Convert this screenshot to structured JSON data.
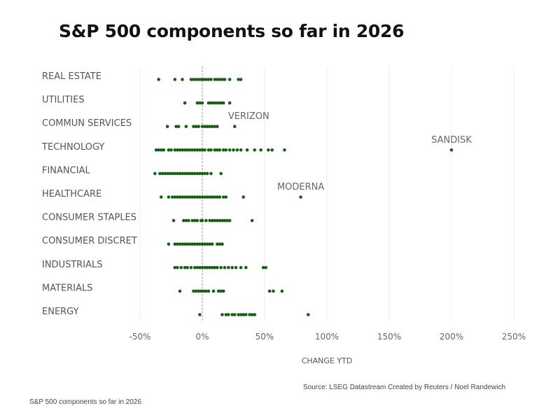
{
  "chart_data": {
    "type": "scatter",
    "title": "S&P 500 components so far in 2026",
    "xlabel": "CHANGE YTD",
    "ylabel": "",
    "xlim": [
      -50,
      250
    ],
    "x_ticks": [
      -50,
      0,
      50,
      100,
      150,
      200,
      250
    ],
    "x_tick_labels": [
      "-50%",
      "0%",
      "50%",
      "100%",
      "150%",
      "200%",
      "250%"
    ],
    "grid": "vertical",
    "reference_line": 0,
    "categories": [
      "REAL ESTATE",
      "UTILITIES",
      "COMMUN SERVICES",
      "TECHNOLOGY",
      "FINANCIAL",
      "HEALTHCARE",
      "CONSUMER STAPLES",
      "CONSUMER DISCRET",
      "INDUSTRIALS",
      "MATERIALS",
      "ENERGY"
    ],
    "series": [
      {
        "name": "REAL ESTATE",
        "values": [
          -35,
          -22,
          -16,
          -9,
          -7,
          -5,
          -3,
          -1,
          1,
          3,
          5,
          7,
          10,
          12,
          14,
          16,
          18,
          22,
          29,
          31
        ]
      },
      {
        "name": "UTILITIES",
        "values": [
          -14,
          -4,
          -2,
          0,
          5,
          7,
          9,
          11,
          13,
          15,
          17,
          22
        ]
      },
      {
        "name": "COMMUN SERVICES",
        "values": [
          -28,
          -21,
          -19,
          -13,
          -7,
          -5,
          -3,
          0,
          2,
          4,
          6,
          8,
          10,
          12,
          26
        ]
      },
      {
        "name": "TECHNOLOGY",
        "values": [
          -37,
          -35,
          -33,
          -31,
          -27,
          -25,
          -22,
          -20,
          -18,
          -16,
          -14,
          -12,
          -10,
          -8,
          -6,
          -4,
          -2,
          0,
          2,
          5,
          7,
          10,
          12,
          14,
          17,
          19,
          22,
          25,
          28,
          31,
          36,
          42,
          47,
          53,
          56,
          66,
          200
        ]
      },
      {
        "name": "FINANCIAL",
        "values": [
          -38,
          -34,
          -32,
          -30,
          -28,
          -26,
          -24,
          -22,
          -20,
          -18,
          -16,
          -14,
          -12,
          -10,
          -8,
          -6,
          -4,
          -2,
          0,
          2,
          4,
          7,
          15
        ]
      },
      {
        "name": "HEALTHCARE",
        "values": [
          -33,
          -27,
          -24,
          -22,
          -20,
          -18,
          -16,
          -14,
          -12,
          -10,
          -8,
          -6,
          -4,
          -2,
          0,
          2,
          4,
          6,
          8,
          10,
          12,
          14,
          17,
          19,
          33,
          79
        ]
      },
      {
        "name": "CONSUMER STAPLES",
        "values": [
          -23,
          -15,
          -13,
          -11,
          -8,
          -6,
          -4,
          -1,
          0,
          3,
          6,
          8,
          10,
          12,
          14,
          16,
          18,
          20,
          22,
          40
        ]
      },
      {
        "name": "CONSUMER DISCRET",
        "values": [
          -27,
          -22,
          -20,
          -18,
          -16,
          -14,
          -12,
          -10,
          -8,
          -6,
          -4,
          -2,
          0,
          2,
          4,
          6,
          8,
          12,
          14,
          16
        ]
      },
      {
        "name": "INDUSTRIALS",
        "values": [
          -22,
          -20,
          -17,
          -14,
          -12,
          -9,
          -6,
          -4,
          -2,
          0,
          2,
          4,
          6,
          8,
          10,
          12,
          15,
          18,
          21,
          24,
          27,
          31,
          35,
          49,
          51
        ]
      },
      {
        "name": "MATERIALS",
        "values": [
          -18,
          -7,
          -5,
          -3,
          -1,
          1,
          3,
          5,
          9,
          13,
          15,
          17,
          54,
          57,
          64
        ]
      },
      {
        "name": "ENERGY",
        "values": [
          -2,
          16,
          19,
          21,
          24,
          26,
          29,
          31,
          33,
          35,
          38,
          40,
          42,
          85
        ]
      }
    ],
    "annotations": [
      {
        "label": "VERIZON",
        "category": "COMMUN SERVICES",
        "x": 26
      },
      {
        "label": "SANDISK",
        "category": "TECHNOLOGY",
        "x": 200
      },
      {
        "label": "MODERNA",
        "category": "HEALTHCARE",
        "x": 79
      }
    ],
    "colors": {
      "dots": "#1a5e16",
      "grid": "#eeeeee",
      "zero_line": "#999999"
    }
  },
  "footer": {
    "source": "Source: LSEG Datastream  Created by Reuters / Noel Randewich",
    "caption": "S&P 500 components so far in 2026"
  }
}
